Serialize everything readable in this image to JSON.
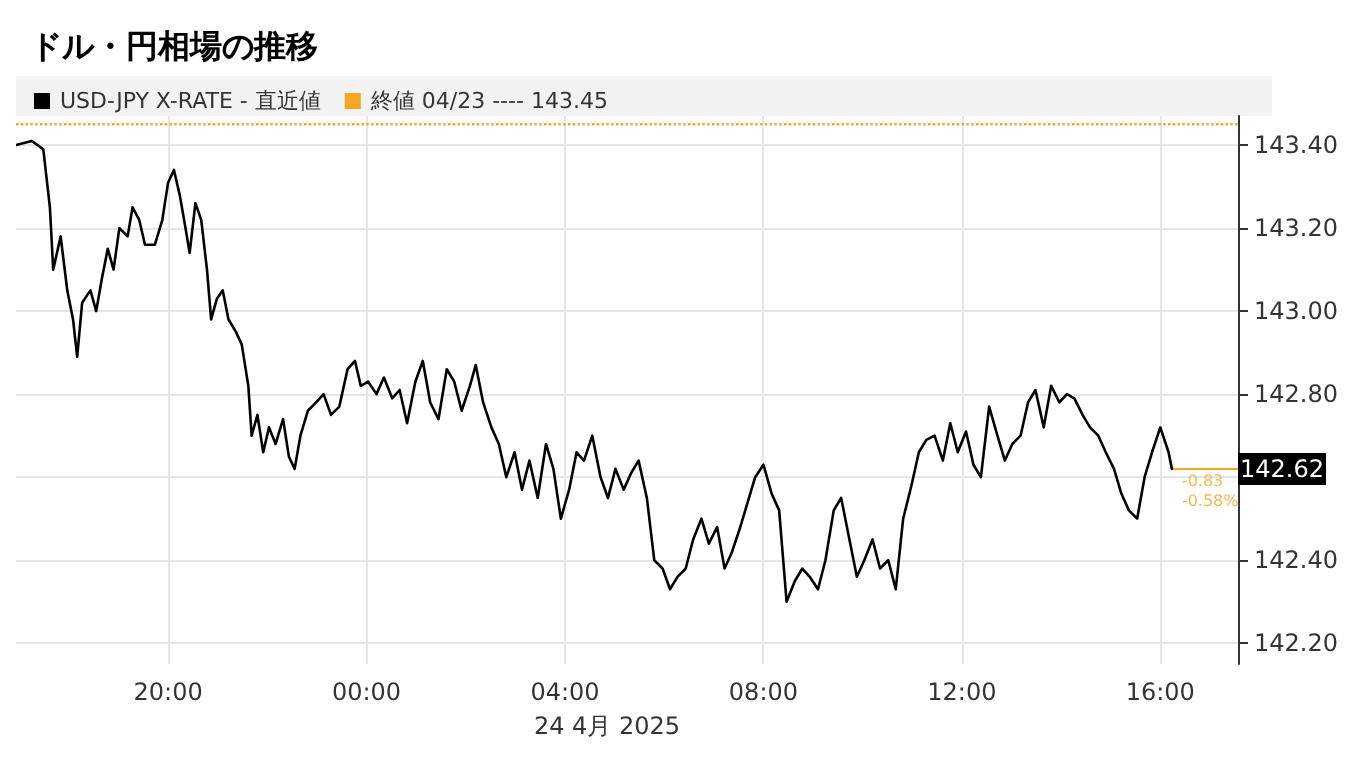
{
  "chart_data": {
    "type": "line",
    "title": "ドル・円相場の推移",
    "xlabel": "24 4月 2025",
    "x": [
      "2025-04-23T16:56",
      "2025-04-23T17:15",
      "2025-04-23T17:29",
      "2025-04-23T17:37",
      "2025-04-23T17:41",
      "2025-04-23T17:50",
      "2025-04-23T17:58",
      "2025-04-23T18:05",
      "2025-04-23T18:10",
      "2025-04-23T18:16",
      "2025-04-23T18:26",
      "2025-04-23T18:33",
      "2025-04-23T18:40",
      "2025-04-23T18:47",
      "2025-04-23T18:54",
      "2025-04-23T19:01",
      "2025-04-23T19:11",
      "2025-04-23T19:17",
      "2025-04-23T19:25",
      "2025-04-23T19:32",
      "2025-04-23T19:44",
      "2025-04-23T19:53",
      "2025-04-23T20:00",
      "2025-04-23T20:07",
      "2025-04-23T20:14",
      "2025-04-23T20:21",
      "2025-04-23T20:26",
      "2025-04-23T20:33",
      "2025-04-23T20:40",
      "2025-04-23T20:47",
      "2025-04-23T20:52",
      "2025-04-23T20:59",
      "2025-04-23T21:06",
      "2025-04-23T21:13",
      "2025-04-23T21:22",
      "2025-04-23T21:29",
      "2025-04-23T21:37",
      "2025-04-23T21:41",
      "2025-04-23T21:48",
      "2025-04-23T21:55",
      "2025-04-23T22:02",
      "2025-04-23T22:10",
      "2025-04-23T22:19",
      "2025-04-23T22:26",
      "2025-04-23T22:33",
      "2025-04-23T22:40",
      "2025-04-23T22:49",
      "2025-04-23T22:59",
      "2025-04-23T23:08",
      "2025-04-23T23:17",
      "2025-04-23T23:27",
      "2025-04-23T23:37",
      "2025-04-23T23:46",
      "2025-04-23T23:53",
      "2025-04-24T00:02",
      "2025-04-24T00:12",
      "2025-04-24T00:21",
      "2025-04-24T00:31",
      "2025-04-24T00:40",
      "2025-04-24T00:49",
      "2025-04-24T00:59",
      "2025-04-24T01:08",
      "2025-04-24T01:17",
      "2025-04-24T01:27",
      "2025-04-24T01:37",
      "2025-04-24T01:46",
      "2025-04-24T01:55",
      "2025-04-24T02:05",
      "2025-04-24T02:12",
      "2025-04-24T02:21",
      "2025-04-24T02:31",
      "2025-04-24T02:40",
      "2025-04-24T02:49",
      "2025-04-24T02:59",
      "2025-04-24T03:08",
      "2025-04-24T03:17",
      "2025-04-24T03:27",
      "2025-04-24T03:37",
      "2025-04-24T03:46",
      "2025-04-24T03:55",
      "2025-04-24T04:05",
      "2025-04-24T04:14",
      "2025-04-24T04:23",
      "2025-04-24T04:33",
      "2025-04-24T04:43",
      "2025-04-24T04:52",
      "2025-04-24T05:01",
      "2025-04-24T05:11",
      "2025-04-24T05:20",
      "2025-04-24T05:29",
      "2025-04-24T05:39",
      "2025-04-24T05:48",
      "2025-04-24T05:58",
      "2025-04-24T06:07",
      "2025-04-24T06:16",
      "2025-04-24T06:26",
      "2025-04-24T06:35",
      "2025-04-24T06:45",
      "2025-04-24T06:54",
      "2025-04-24T07:04",
      "2025-04-24T07:13",
      "2025-04-24T07:22",
      "2025-04-24T07:32",
      "2025-04-24T07:41",
      "2025-04-24T07:50",
      "2025-04-24T08:00",
      "2025-04-24T08:10",
      "2025-04-24T08:19",
      "2025-04-24T08:28",
      "2025-04-24T08:38",
      "2025-04-24T08:47",
      "2025-04-24T08:56",
      "2025-04-24T09:06",
      "2025-04-24T09:15",
      "2025-04-24T09:25",
      "2025-04-24T09:34",
      "2025-04-24T09:44",
      "2025-04-24T09:53",
      "2025-04-24T10:02",
      "2025-04-24T10:12",
      "2025-04-24T10:21",
      "2025-04-24T10:31",
      "2025-04-24T10:40",
      "2025-04-24T10:49",
      "2025-04-24T10:59",
      "2025-04-24T11:08",
      "2025-04-24T11:17",
      "2025-04-24T11:27",
      "2025-04-24T11:37",
      "2025-04-24T11:46",
      "2025-04-24T11:55",
      "2025-04-24T12:05",
      "2025-04-24T12:14",
      "2025-04-24T12:23",
      "2025-04-24T12:33",
      "2025-04-24T12:43",
      "2025-04-24T12:52",
      "2025-04-24T13:01",
      "2025-04-24T13:11",
      "2025-04-24T13:20",
      "2025-04-24T13:29",
      "2025-04-24T13:39",
      "2025-04-24T13:48",
      "2025-04-24T13:58",
      "2025-04-24T14:07",
      "2025-04-24T14:16",
      "2025-04-24T14:26",
      "2025-04-24T14:35",
      "2025-04-24T14:45",
      "2025-04-24T14:54",
      "2025-04-24T15:04",
      "2025-04-24T15:13",
      "2025-04-24T15:22",
      "2025-04-24T15:32",
      "2025-04-24T15:41",
      "2025-04-24T15:50",
      "2025-04-24T16:00",
      "2025-04-24T16:10",
      "2025-04-24T16:14"
    ],
    "series": [
      {
        "name": "USD-JPY X-RATE - 直近値",
        "color": "#000000",
        "values": [
          143.4,
          143.41,
          143.39,
          143.25,
          143.1,
          143.18,
          143.05,
          142.98,
          142.89,
          143.02,
          143.05,
          143,
          143.08,
          143.15,
          143.1,
          143.2,
          143.18,
          143.25,
          143.22,
          143.16,
          143.16,
          143.22,
          143.31,
          143.34,
          143.28,
          143.2,
          143.14,
          143.26,
          143.22,
          143.1,
          142.98,
          143.03,
          143.05,
          142.98,
          142.95,
          142.92,
          142.82,
          142.7,
          142.75,
          142.66,
          142.72,
          142.68,
          142.74,
          142.65,
          142.62,
          142.7,
          142.76,
          142.78,
          142.8,
          142.75,
          142.77,
          142.86,
          142.88,
          142.82,
          142.83,
          142.8,
          142.84,
          142.79,
          142.81,
          142.73,
          142.83,
          142.88,
          142.78,
          142.74,
          142.86,
          142.83,
          142.76,
          142.82,
          142.87,
          142.78,
          142.72,
          142.68,
          142.6,
          142.66,
          142.57,
          142.64,
          142.55,
          142.68,
          142.62,
          142.5,
          142.57,
          142.66,
          142.64,
          142.7,
          142.6,
          142.55,
          142.62,
          142.57,
          142.61,
          142.64,
          142.55,
          142.4,
          142.38,
          142.33,
          142.36,
          142.38,
          142.45,
          142.5,
          142.44,
          142.48,
          142.38,
          142.42,
          142.48,
          142.54,
          142.6,
          142.63,
          142.56,
          142.52,
          142.3,
          142.35,
          142.38,
          142.36,
          142.33,
          142.4,
          142.52,
          142.55,
          142.45,
          142.36,
          142.4,
          142.45,
          142.38,
          142.4,
          142.33,
          142.5,
          142.58,
          142.66,
          142.69,
          142.7,
          142.64,
          142.73,
          142.66,
          142.71,
          142.63,
          142.6,
          142.77,
          142.7,
          142.64,
          142.68,
          142.7,
          142.78,
          142.81,
          142.72,
          142.82,
          142.78,
          142.8,
          142.79,
          142.75,
          142.72,
          142.7,
          142.66,
          142.62,
          142.56,
          142.52,
          142.5,
          142.6,
          142.66,
          142.72,
          142.66,
          142.62
        ]
      }
    ],
    "xlim": [
      "2025-04-23T16:56",
      "2025-04-24T17:34"
    ],
    "xticks": [
      {
        "value": "2025-04-23T20:00",
        "label": "20:00"
      },
      {
        "value": "2025-04-24T00:00",
        "label": "00:00"
      },
      {
        "value": "2025-04-24T04:00",
        "label": "04:00"
      },
      {
        "value": "2025-04-24T08:00",
        "label": "08:00"
      },
      {
        "value": "2025-04-24T12:00",
        "label": "12:00"
      },
      {
        "value": "2025-04-24T16:00",
        "label": "16:00"
      }
    ],
    "ylim": [
      142.15,
      143.47
    ],
    "yticks": [
      {
        "value": 142.2,
        "label": "142.20"
      },
      {
        "value": 142.4,
        "label": "142.40"
      },
      {
        "value": 142.6,
        "label": null
      },
      {
        "value": 142.8,
        "label": "142.80"
      },
      {
        "value": 143,
        "label": "143.00"
      },
      {
        "value": 143.2,
        "label": "143.20"
      },
      {
        "value": 143.4,
        "label": "143.40"
      }
    ],
    "ref_lines": [
      {
        "axis": "y",
        "value": 143.45,
        "label": "終値 04/23 ---- 143.45",
        "color": "#f5a623",
        "line_style": "dotted"
      }
    ],
    "annotations": [
      {
        "text": "142.62",
        "x": "2025-04-24T16:14",
        "y": 142.62
      },
      {
        "text": "-0.83",
        "x": "2025-04-24T16:14",
        "y": 142.62
      },
      {
        "text": "-0.58%",
        "x": "2025-04-24T16:14",
        "y": 142.62
      }
    ],
    "grid": true,
    "legend": "top left",
    "marker": "none",
    "line_style": "solid"
  }
}
